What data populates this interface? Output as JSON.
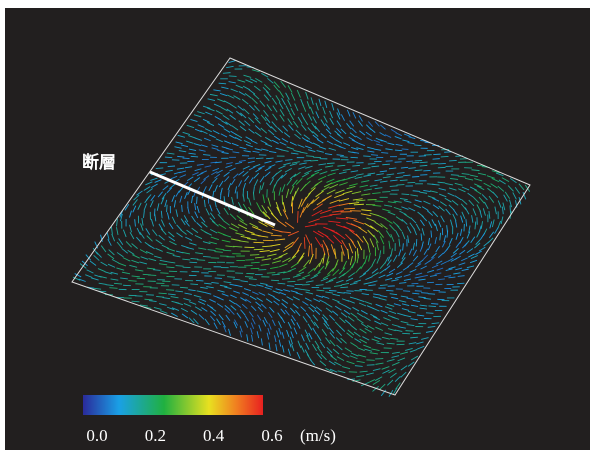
{
  "annotation": {
    "label": "断層"
  },
  "colorbar": {
    "range": [
      0,
      0.6
    ],
    "ticks": [
      {
        "value": 0,
        "label": "0.0"
      },
      {
        "value": 0.2,
        "label": "0.2"
      },
      {
        "value": 0.4,
        "label": "0.4"
      },
      {
        "value": 0.6,
        "label": "0.6"
      }
    ],
    "unit": "(m/s)"
  }
}
